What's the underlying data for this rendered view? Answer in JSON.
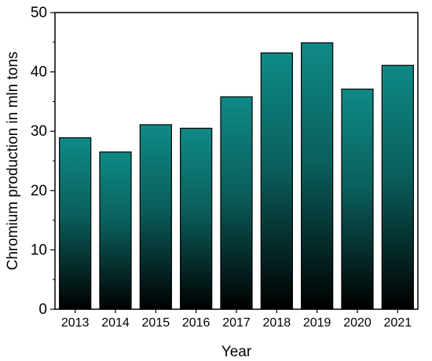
{
  "chart_data": {
    "type": "bar",
    "categories": [
      "2013",
      "2014",
      "2015",
      "2016",
      "2017",
      "2018",
      "2019",
      "2020",
      "2021"
    ],
    "values": [
      28.9,
      26.5,
      31.1,
      30.5,
      35.8,
      43.2,
      44.9,
      37.1,
      41.1
    ],
    "xlabel": "Year",
    "ylabel": "Chromium production in mln tons",
    "ylim": [
      0,
      50
    ],
    "yticks": [
      0,
      10,
      20,
      30,
      40,
      50
    ],
    "ytick_labels": [
      "0",
      "10",
      "20",
      "30",
      "40",
      "50"
    ],
    "grid": false,
    "bar_gradient": {
      "top": "#0e8a86",
      "bottom": "#000000"
    },
    "bar_edge_color": "#000000"
  }
}
